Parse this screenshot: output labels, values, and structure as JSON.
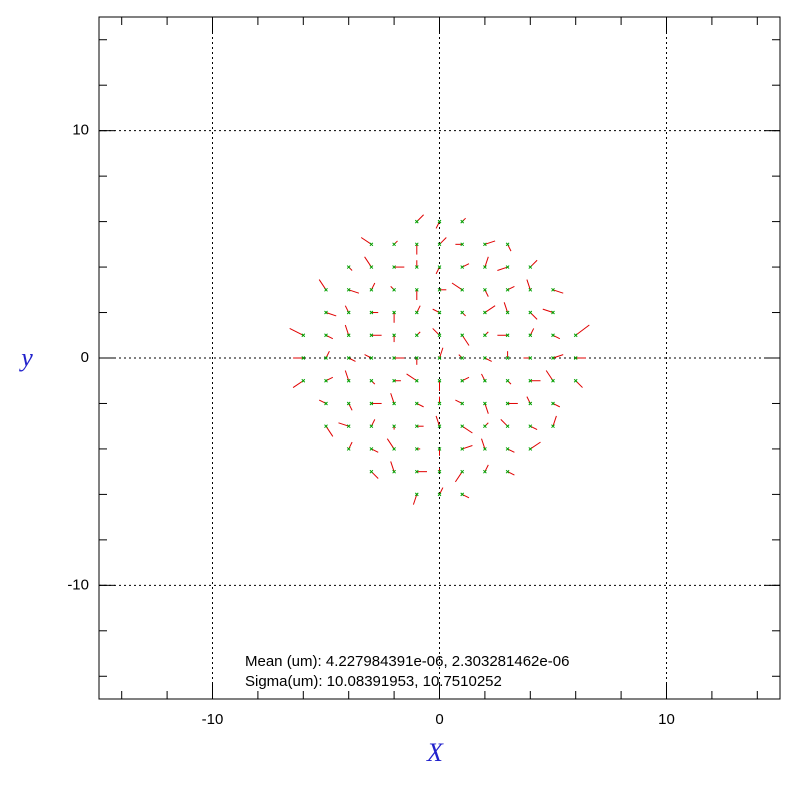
{
  "chart_data": {
    "type": "quiver",
    "xlabel": "X",
    "ylabel": "y",
    "annotations": [
      "Mean (um): 4.227984391e-06, 2.303281462e-06",
      "Sigma(um): 10.08391953, 10.7510252"
    ],
    "xlim": [
      -15,
      15
    ],
    "ylim": [
      -15,
      15
    ],
    "xticks": [
      -10,
      0,
      10
    ],
    "yticks": [
      -10,
      0,
      10
    ],
    "xminorticks": [
      -14,
      -12,
      -10,
      -8,
      -6,
      -4,
      -2,
      0,
      2,
      4,
      6,
      8,
      10,
      12,
      14
    ],
    "yminorticks": [
      -14,
      -12,
      -10,
      -8,
      -6,
      -4,
      -2,
      0,
      2,
      4,
      6,
      8,
      10,
      12,
      14
    ],
    "grid": true,
    "series": [
      {
        "point_color": "#00a000",
        "vector_color": "#e00000",
        "x": [
          -1,
          0,
          1,
          -3,
          -2,
          -1,
          0,
          1,
          2,
          3,
          -4,
          -3,
          -2,
          -1,
          0,
          1,
          2,
          3,
          4,
          -5,
          -4,
          -3,
          -2,
          -1,
          0,
          1,
          2,
          3,
          4,
          5,
          -5,
          -4,
          -3,
          -2,
          -1,
          0,
          1,
          2,
          3,
          4,
          5,
          -6,
          -5,
          -4,
          -3,
          -2,
          -1,
          0,
          1,
          2,
          3,
          4,
          5,
          6,
          -6,
          -5,
          -4,
          -3,
          -2,
          -1,
          0,
          1,
          2,
          3,
          4,
          5,
          6,
          -6,
          -5,
          -4,
          -3,
          -2,
          -1,
          0,
          1,
          2,
          3,
          4,
          5,
          6,
          -5,
          -4,
          -3,
          -2,
          -1,
          0,
          1,
          2,
          3,
          4,
          5,
          -5,
          -4,
          -3,
          -2,
          -1,
          0,
          1,
          2,
          3,
          4,
          5,
          -4,
          -3,
          -2,
          -1,
          0,
          1,
          2,
          3,
          4,
          -3,
          -2,
          -1,
          0,
          1,
          2,
          3,
          -1,
          0,
          1
        ],
        "y": [
          6,
          6,
          6,
          5,
          5,
          5,
          5,
          5,
          5,
          5,
          4,
          4,
          4,
          4,
          4,
          4,
          4,
          4,
          4,
          3,
          3,
          3,
          3,
          3,
          3,
          3,
          3,
          3,
          3,
          3,
          2,
          2,
          2,
          2,
          2,
          2,
          2,
          2,
          2,
          2,
          2,
          1,
          1,
          1,
          1,
          1,
          1,
          1,
          1,
          1,
          1,
          1,
          1,
          1,
          0,
          0,
          0,
          0,
          0,
          0,
          0,
          0,
          0,
          0,
          0,
          0,
          0,
          -1,
          -1,
          -1,
          -1,
          -1,
          -1,
          -1,
          -1,
          -1,
          -1,
          -1,
          -1,
          -1,
          -2,
          -2,
          -2,
          -2,
          -2,
          -2,
          -2,
          -2,
          -2,
          -2,
          -2,
          -3,
          -3,
          -3,
          -3,
          -3,
          -3,
          -3,
          -3,
          -3,
          -3,
          -3,
          -4,
          -4,
          -4,
          -4,
          -4,
          -4,
          -4,
          -4,
          -4,
          -5,
          -5,
          -5,
          -5,
          -5,
          -5,
          -5,
          -6,
          -6,
          -6
        ],
        "dx": [
          0.2,
          -0.1,
          0.1,
          -0.3,
          0.1,
          0,
          0.2,
          -0.2,
          0.3,
          0.1,
          0.1,
          -0.2,
          0.3,
          0,
          -0.1,
          0.2,
          0.1,
          -0.3,
          0.2,
          -0.2,
          0.3,
          0.1,
          -0.1,
          0,
          0.2,
          -0.3,
          0.1,
          0.2,
          -0.1,
          0.3,
          0.3,
          -0.1,
          0.2,
          0,
          0.1,
          -0.2,
          0.1,
          0.3,
          -0.1,
          0.2,
          -0.3,
          -0.4,
          0.2,
          -0.1,
          0.3,
          0,
          0.1,
          -0.2,
          0.2,
          0.1,
          -0.3,
          0.1,
          0.2,
          0.4,
          -0.3,
          0.1,
          0.2,
          -0.2,
          0.3,
          0,
          0.1,
          -0.1,
          0.2,
          0,
          -0.2,
          0.3,
          0.3,
          -0.3,
          0.2,
          -0.1,
          0.1,
          0.2,
          -0.3,
          0,
          0.2,
          -0.1,
          0.1,
          0.3,
          -0.2,
          0.2,
          -0.2,
          0.1,
          0.3,
          -0.1,
          0.2,
          0,
          -0.2,
          0.1,
          0.3,
          -0.1,
          0.2,
          0.2,
          -0.3,
          0.1,
          0,
          0.2,
          -0.1,
          0.3,
          0.1,
          -0.2,
          0.2,
          0.1,
          0.1,
          0.2,
          -0.2,
          0.1,
          0,
          0.3,
          -0.1,
          0.2,
          0.3,
          0.2,
          -0.1,
          0.3,
          0,
          -0.2,
          0.1,
          0.2,
          -0.1,
          0.1,
          0.2
        ],
        "dy": [
          0.2,
          -0.2,
          0.1,
          0.2,
          0.1,
          -0.3,
          0.2,
          0,
          0.1,
          -0.2,
          -0.1,
          0.3,
          0,
          0.2,
          -0.2,
          0.1,
          0.3,
          -0.1,
          0.2,
          0.3,
          -0.1,
          0.2,
          0.1,
          -0.3,
          0,
          0.2,
          -0.2,
          0.1,
          0.3,
          -0.1,
          -0.1,
          0.2,
          0,
          -0.3,
          0.2,
          0.1,
          -0.1,
          0.2,
          0.3,
          -0.2,
          0.1,
          0.2,
          -0.1,
          0.3,
          0,
          -0.2,
          0.1,
          0.2,
          -0.3,
          0.1,
          0,
          0.2,
          -0.1,
          0.3,
          0,
          0.2,
          -0.1,
          0.1,
          0,
          -0.2,
          0.3,
          0.1,
          -0.1,
          0.2,
          0,
          0.1,
          0,
          -0.2,
          0.1,
          0.3,
          -0.1,
          0,
          0.2,
          -0.3,
          0.1,
          0.2,
          -0.1,
          0,
          0.3,
          -0.2,
          0.1,
          -0.2,
          0,
          0.3,
          -0.1,
          0.2,
          0.1,
          -0.3,
          0,
          0.2,
          -0.1,
          -0.3,
          0.1,
          0.2,
          -0.1,
          0,
          0.3,
          -0.2,
          0.1,
          0.2,
          -0.1,
          0.3,
          0.2,
          -0.1,
          0.3,
          0,
          -0.2,
          0.1,
          0.3,
          -0.1,
          0.2,
          -0.2,
          0.3,
          0,
          0.1,
          -0.3,
          0.2,
          -0.1,
          -0.3,
          0.2,
          -0.1
        ]
      }
    ]
  }
}
